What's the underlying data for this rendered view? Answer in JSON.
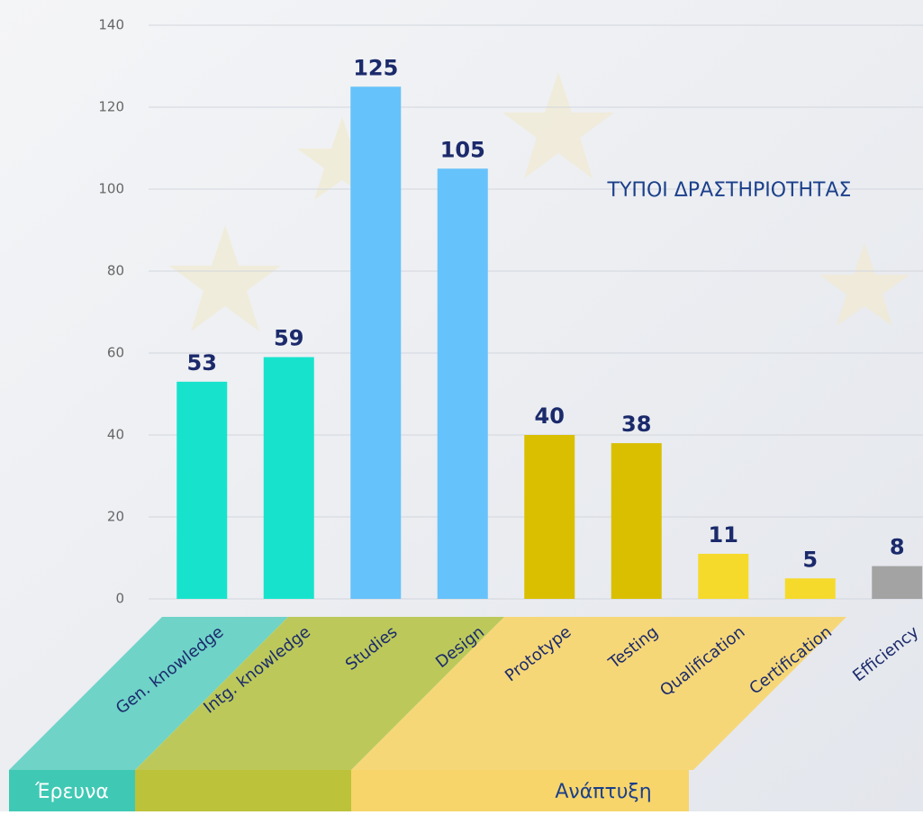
{
  "chart_data": {
    "type": "bar",
    "title": "ΤΥΠΟΙ ΔΡΑΣΤΗΡΙΟΤΗΤΑΣ",
    "categories": [
      "Gen. knowledge",
      "Intg. knowledge",
      "Studies",
      "Design",
      "Prototype",
      "Testing",
      "Qualification",
      "Certification",
      "Efficiency"
    ],
    "values": [
      53,
      59,
      125,
      105,
      40,
      38,
      11,
      5,
      8
    ],
    "colors": [
      "#17e3cc",
      "#17e3cc",
      "#66c2fa",
      "#66c2fa",
      "#d9bf00",
      "#d9bf00",
      "#f5da2c",
      "#f5da2c",
      "#a3a3a3"
    ],
    "ylim": [
      0,
      140
    ],
    "yticks": [
      0,
      20,
      40,
      60,
      80,
      100,
      120,
      140
    ],
    "grid": true,
    "annotations": [
      "Έρευνα",
      "Ανάπτυξη"
    ]
  }
}
